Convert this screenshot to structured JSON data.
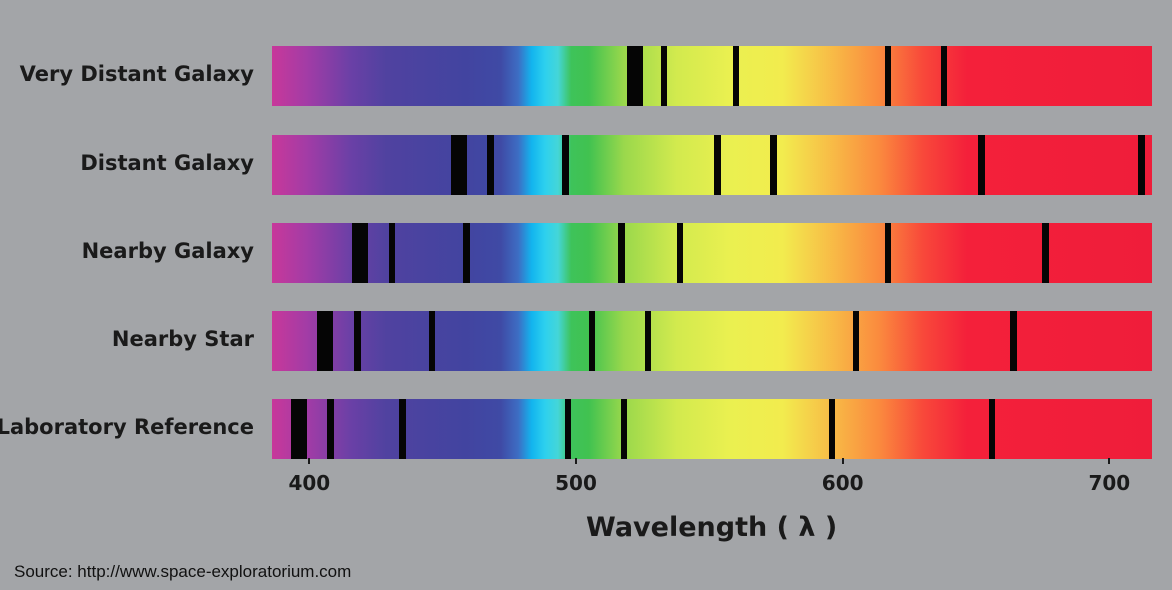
{
  "diagram": {
    "axis_title": "Wavelength ( λ )",
    "axis_range": [
      386,
      716
    ],
    "ticks": [
      "400",
      "500",
      "600",
      "700"
    ],
    "tick_values": [
      400,
      500,
      600,
      700
    ],
    "rows": [
      {
        "label": "Very Distant Galaxy",
        "lines": [
          {
            "nm": 522,
            "w": 2.0
          },
          {
            "nm": 533,
            "w": 0.8
          },
          {
            "nm": 560,
            "w": 0.8
          },
          {
            "nm": 617,
            "w": 0.8
          },
          {
            "nm": 638,
            "w": 0.8
          }
        ]
      },
      {
        "label": "Distant Galaxy",
        "lines": [
          {
            "nm": 456,
            "w": 2.0
          },
          {
            "nm": 468,
            "w": 0.8
          },
          {
            "nm": 496,
            "w": 0.8
          },
          {
            "nm": 553,
            "w": 0.8
          },
          {
            "nm": 574,
            "w": 0.8
          },
          {
            "nm": 652,
            "w": 0.8
          },
          {
            "nm": 712,
            "w": 0.8
          }
        ]
      },
      {
        "label": "Nearby Galaxy",
        "lines": [
          {
            "nm": 419,
            "w": 2.0
          },
          {
            "nm": 431,
            "w": 0.8
          },
          {
            "nm": 459,
            "w": 0.8
          },
          {
            "nm": 517,
            "w": 0.8
          },
          {
            "nm": 539,
            "w": 0.8
          },
          {
            "nm": 617,
            "w": 0.8
          },
          {
            "nm": 676,
            "w": 0.8
          }
        ]
      },
      {
        "label": "Nearby Star",
        "lines": [
          {
            "nm": 406,
            "w": 2.0
          },
          {
            "nm": 418,
            "w": 0.8
          },
          {
            "nm": 446,
            "w": 0.8
          },
          {
            "nm": 506,
            "w": 0.8
          },
          {
            "nm": 527,
            "w": 0.8
          },
          {
            "nm": 605,
            "w": 0.8
          },
          {
            "nm": 664,
            "w": 0.8
          }
        ]
      },
      {
        "label": "Laboratory Reference",
        "lines": [
          {
            "nm": 396,
            "w": 2.0
          },
          {
            "nm": 408,
            "w": 0.8
          },
          {
            "nm": 435,
            "w": 0.8
          },
          {
            "nm": 497,
            "w": 0.8
          },
          {
            "nm": 518,
            "w": 0.8
          },
          {
            "nm": 596,
            "w": 0.8
          },
          {
            "nm": 656,
            "w": 0.8
          }
        ]
      }
    ]
  },
  "source": "Source: http://www.space-exploratorium.com",
  "colors": {
    "background": "#a3a5a8",
    "absorption_line": "#050505",
    "text": "#1a1a1a"
  }
}
